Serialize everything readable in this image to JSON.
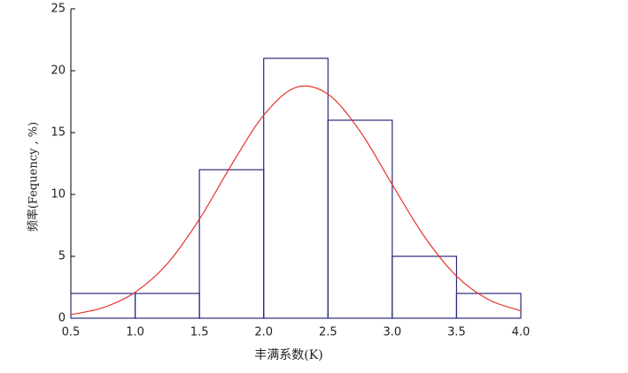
{
  "chart_data": {
    "type": "histogram",
    "xlabel": "丰满系数(K)",
    "ylabel": "频率(Fequency , %)",
    "bins": [
      0.5,
      1.0,
      1.5,
      2.0,
      2.5,
      3.0,
      3.5,
      4.0
    ],
    "values": [
      2,
      2,
      12,
      21,
      16,
      5,
      2
    ],
    "color": "#2b2b7a",
    "curve": {
      "color": "#e8322b",
      "x": [
        0.5,
        0.75,
        1.0,
        1.25,
        1.5,
        1.75,
        2.0,
        2.25,
        2.5,
        2.75,
        3.0,
        3.25,
        3.5,
        3.75,
        4.0
      ],
      "values": [
        0.29,
        0.85,
        2.1,
        4.4,
        8.0,
        12.4,
        16.4,
        18.65,
        18.1,
        15.1,
        10.8,
        6.6,
        3.4,
        1.5,
        0.6
      ]
    },
    "xlim": [
      0.5,
      4.0
    ],
    "xticks": [
      0.5,
      {
        "value": 1,
        "label": "1.0"
      },
      1.5,
      {
        "value": 2,
        "label": "2.0"
      },
      2.5,
      {
        "value": 3,
        "label": "3.0"
      },
      3.5,
      {
        "value": 4,
        "label": "4.0"
      }
    ],
    "ylim": [
      0,
      25
    ],
    "yticks": [
      0,
      5,
      10,
      15,
      20,
      25
    ]
  }
}
